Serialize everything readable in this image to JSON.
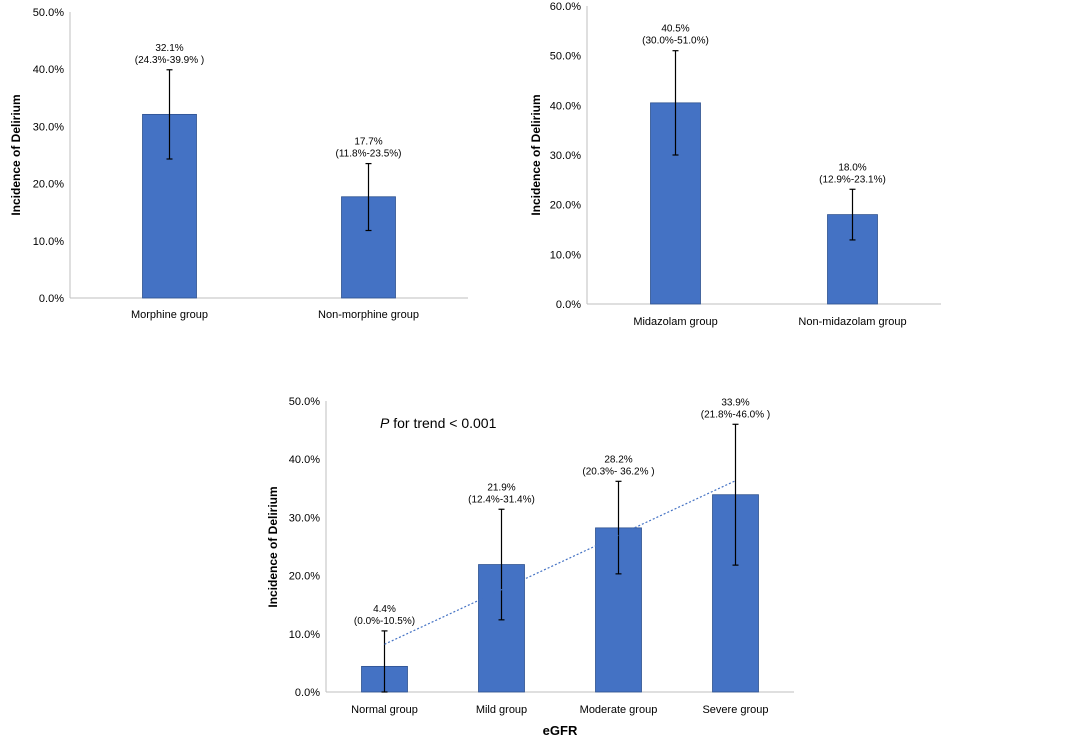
{
  "chart_data": [
    {
      "type": "bar",
      "title": "",
      "xlabel": "",
      "ylabel": "Incidence of Delirium",
      "ylim": [
        0,
        50
      ],
      "yticks": [
        "0.0%",
        "10.0%",
        "20.0%",
        "30.0%",
        "40.0%",
        "50.0%"
      ],
      "categories": [
        "Morphine group",
        "Non-morphine group"
      ],
      "values": [
        32.1,
        17.7
      ],
      "ci_low": [
        24.3,
        11.8
      ],
      "ci_high": [
        39.9,
        23.5
      ],
      "labels_pct": [
        "32.1%",
        "17.7%"
      ],
      "labels_ci": [
        "(24.3%-39.9% )",
        "(11.8%-23.5%)"
      ]
    },
    {
      "type": "bar",
      "title": "",
      "xlabel": "",
      "ylabel": "Incidence of Delirium",
      "ylim": [
        0,
        60
      ],
      "yticks": [
        "0.0%",
        "10.0%",
        "20.0%",
        "30.0%",
        "40.0%",
        "50.0%",
        "60.0%"
      ],
      "categories": [
        "Midazolam group",
        "Non-midazolam group"
      ],
      "values": [
        40.5,
        18.0
      ],
      "ci_low": [
        30.0,
        12.9
      ],
      "ci_high": [
        51.0,
        23.1
      ],
      "labels_pct": [
        "40.5%",
        "18.0%"
      ],
      "labels_ci": [
        "(30.0%-51.0%)",
        "(12.9%-23.1%)"
      ]
    },
    {
      "type": "bar",
      "title": "",
      "xlabel": "eGFR",
      "ylabel": "Incidence of Delirium",
      "ylim": [
        0,
        50
      ],
      "yticks": [
        "0.0%",
        "10.0%",
        "20.0%",
        "30.0%",
        "40.0%",
        "50.0%"
      ],
      "categories": [
        "Normal group",
        "Mild group",
        "Moderate group",
        "Severe group"
      ],
      "values": [
        4.4,
        21.9,
        28.2,
        33.9
      ],
      "ci_low": [
        0.0,
        12.4,
        20.3,
        21.8
      ],
      "ci_high": [
        10.5,
        31.4,
        36.2,
        46.0
      ],
      "labels_pct": [
        "4.4%",
        "21.9%",
        "28.2%",
        "33.9%"
      ],
      "labels_ci": [
        "(0.0%-10.5%)",
        "(12.4%-31.4%)",
        "(20.3%- 36.2% )",
        "(21.8%-46.0% )"
      ],
      "trendline": {
        "start": 8.2,
        "end": 36.3
      },
      "annotation_italic": "P",
      "annotation_rest": " for trend < 0.001"
    }
  ]
}
